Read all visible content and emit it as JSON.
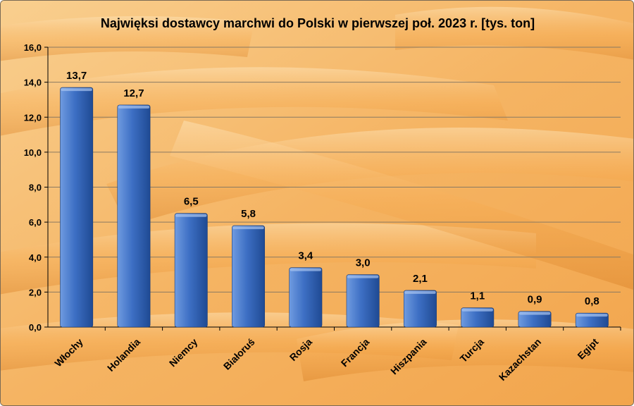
{
  "chart_data": {
    "type": "bar",
    "title": "Najwięksi dostawcy marchwi do Polski w pierwszej poł. 2023 r. [tys. ton]",
    "categories": [
      "Włochy",
      "Holandia",
      "Niemcy",
      "Białoruś",
      "Rosja",
      "Francja",
      "Hiszpania",
      "Turcja",
      "Kazachstan",
      "Egipt"
    ],
    "values": [
      13.7,
      12.7,
      6.5,
      5.8,
      3.4,
      3.0,
      2.1,
      1.1,
      0.9,
      0.8
    ],
    "value_labels": [
      "13,7",
      "12,7",
      "6,5",
      "5,8",
      "3,4",
      "3,0",
      "2,1",
      "1,1",
      "0,9",
      "0,8"
    ],
    "y_ticks": [
      "0,0",
      "2,0",
      "4,0",
      "6,0",
      "8,0",
      "10,0",
      "12,0",
      "14,0",
      "16,0"
    ],
    "ylim": [
      0,
      16
    ],
    "grid": true,
    "legend": "none",
    "colors": {
      "bar_light": "#6f9be0",
      "bar_mid": "#3d6fc4",
      "bar_dark": "#1f4a93",
      "grid": "#8a7a62",
      "text": "#000000",
      "background": "#f7c27a"
    }
  }
}
